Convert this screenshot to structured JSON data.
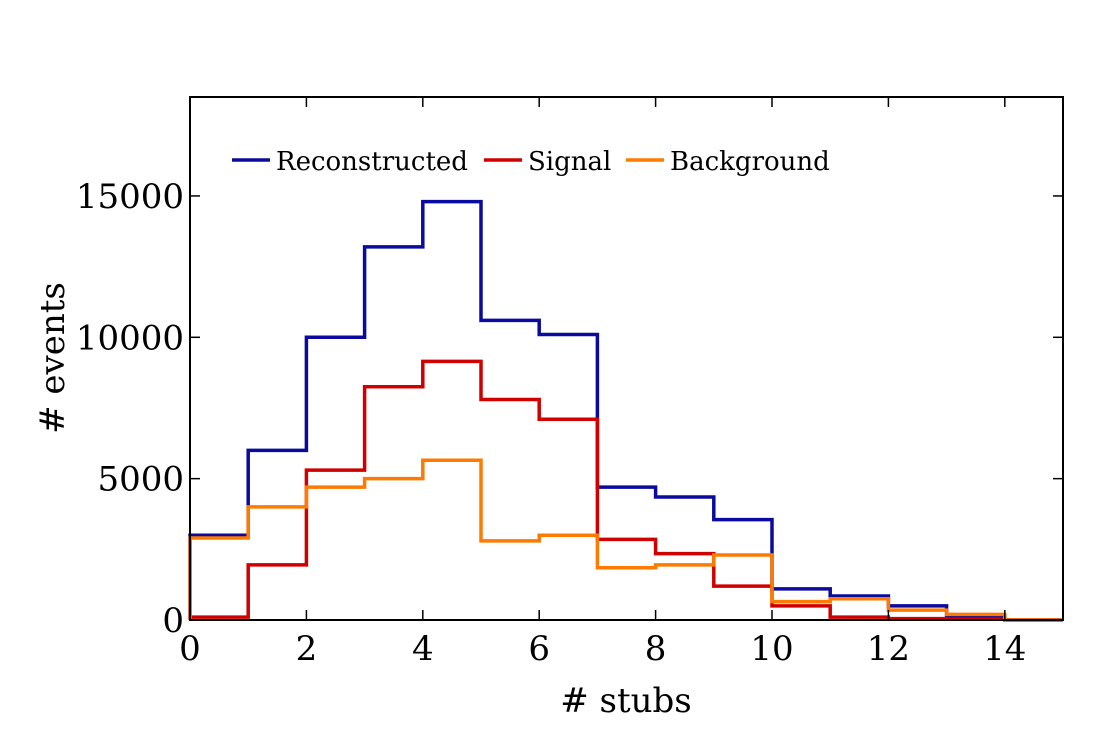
{
  "chart_data": {
    "type": "line",
    "title": "",
    "xlabel": "# stubs",
    "ylabel": "# events",
    "xlim": [
      0,
      15
    ],
    "ylim": [
      0,
      18500
    ],
    "xticks": [
      0,
      2,
      4,
      6,
      8,
      10,
      12,
      14
    ],
    "yticks": [
      0,
      5000,
      10000,
      15000
    ],
    "grid": false,
    "legend_position": "top-left",
    "bin_edges": [
      0,
      1,
      2,
      3,
      4,
      5,
      6,
      7,
      8,
      9,
      10,
      11,
      12,
      13,
      14,
      15
    ],
    "series": [
      {
        "name": "Reconstructed",
        "color": "#0a0a9e",
        "values": [
          3000,
          6000,
          10000,
          13200,
          14800,
          10600,
          10100,
          4700,
          4350,
          3550,
          1100,
          850,
          500,
          100,
          0
        ]
      },
      {
        "name": "Signal",
        "color": "#d00000",
        "values": [
          100,
          1950,
          5300,
          8250,
          9150,
          7800,
          7100,
          2850,
          2350,
          1200,
          500,
          100,
          50,
          30,
          0
        ]
      },
      {
        "name": "Background",
        "color": "#ff7a00",
        "values": [
          2900,
          4000,
          4700,
          5000,
          5650,
          2800,
          3000,
          1850,
          1950,
          2300,
          650,
          750,
          350,
          200,
          0
        ]
      }
    ]
  }
}
